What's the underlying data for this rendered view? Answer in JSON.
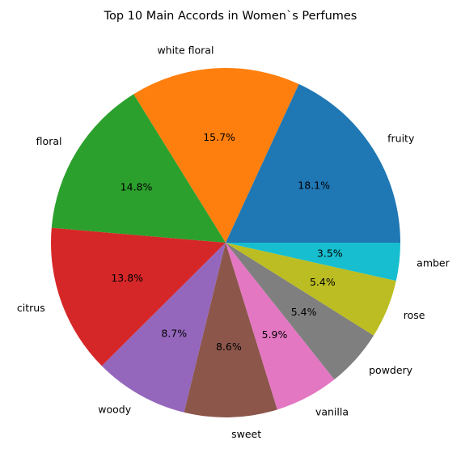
{
  "chart_data": {
    "type": "pie",
    "title": "Top 10 Main Accords in Women`s Perfumes",
    "start_angle_deg": 0,
    "direction": "counterclockwise",
    "slices": [
      {
        "label": "fruity",
        "pct": 18.1,
        "pct_label": "18.1%",
        "color": "#1f77b4"
      },
      {
        "label": "white floral",
        "pct": 15.7,
        "pct_label": "15.7%",
        "color": "#ff7f0e"
      },
      {
        "label": "floral",
        "pct": 14.8,
        "pct_label": "14.8%",
        "color": "#2ca02c"
      },
      {
        "label": "citrus",
        "pct": 13.8,
        "pct_label": "13.8%",
        "color": "#d62728"
      },
      {
        "label": "woody",
        "pct": 8.7,
        "pct_label": "8.7%",
        "color": "#9467bd"
      },
      {
        "label": "sweet",
        "pct": 8.6,
        "pct_label": "8.6%",
        "color": "#8c564b"
      },
      {
        "label": "vanilla",
        "pct": 5.9,
        "pct_label": "5.9%",
        "color": "#e377c2"
      },
      {
        "label": "powdery",
        "pct": 5.4,
        "pct_label": "5.4%",
        "color": "#7f7f7f"
      },
      {
        "label": "rose",
        "pct": 5.4,
        "pct_label": "5.4%",
        "color": "#bcbd22"
      },
      {
        "label": "amber",
        "pct": 3.5,
        "pct_label": "3.5%",
        "color": "#17becf"
      }
    ]
  }
}
